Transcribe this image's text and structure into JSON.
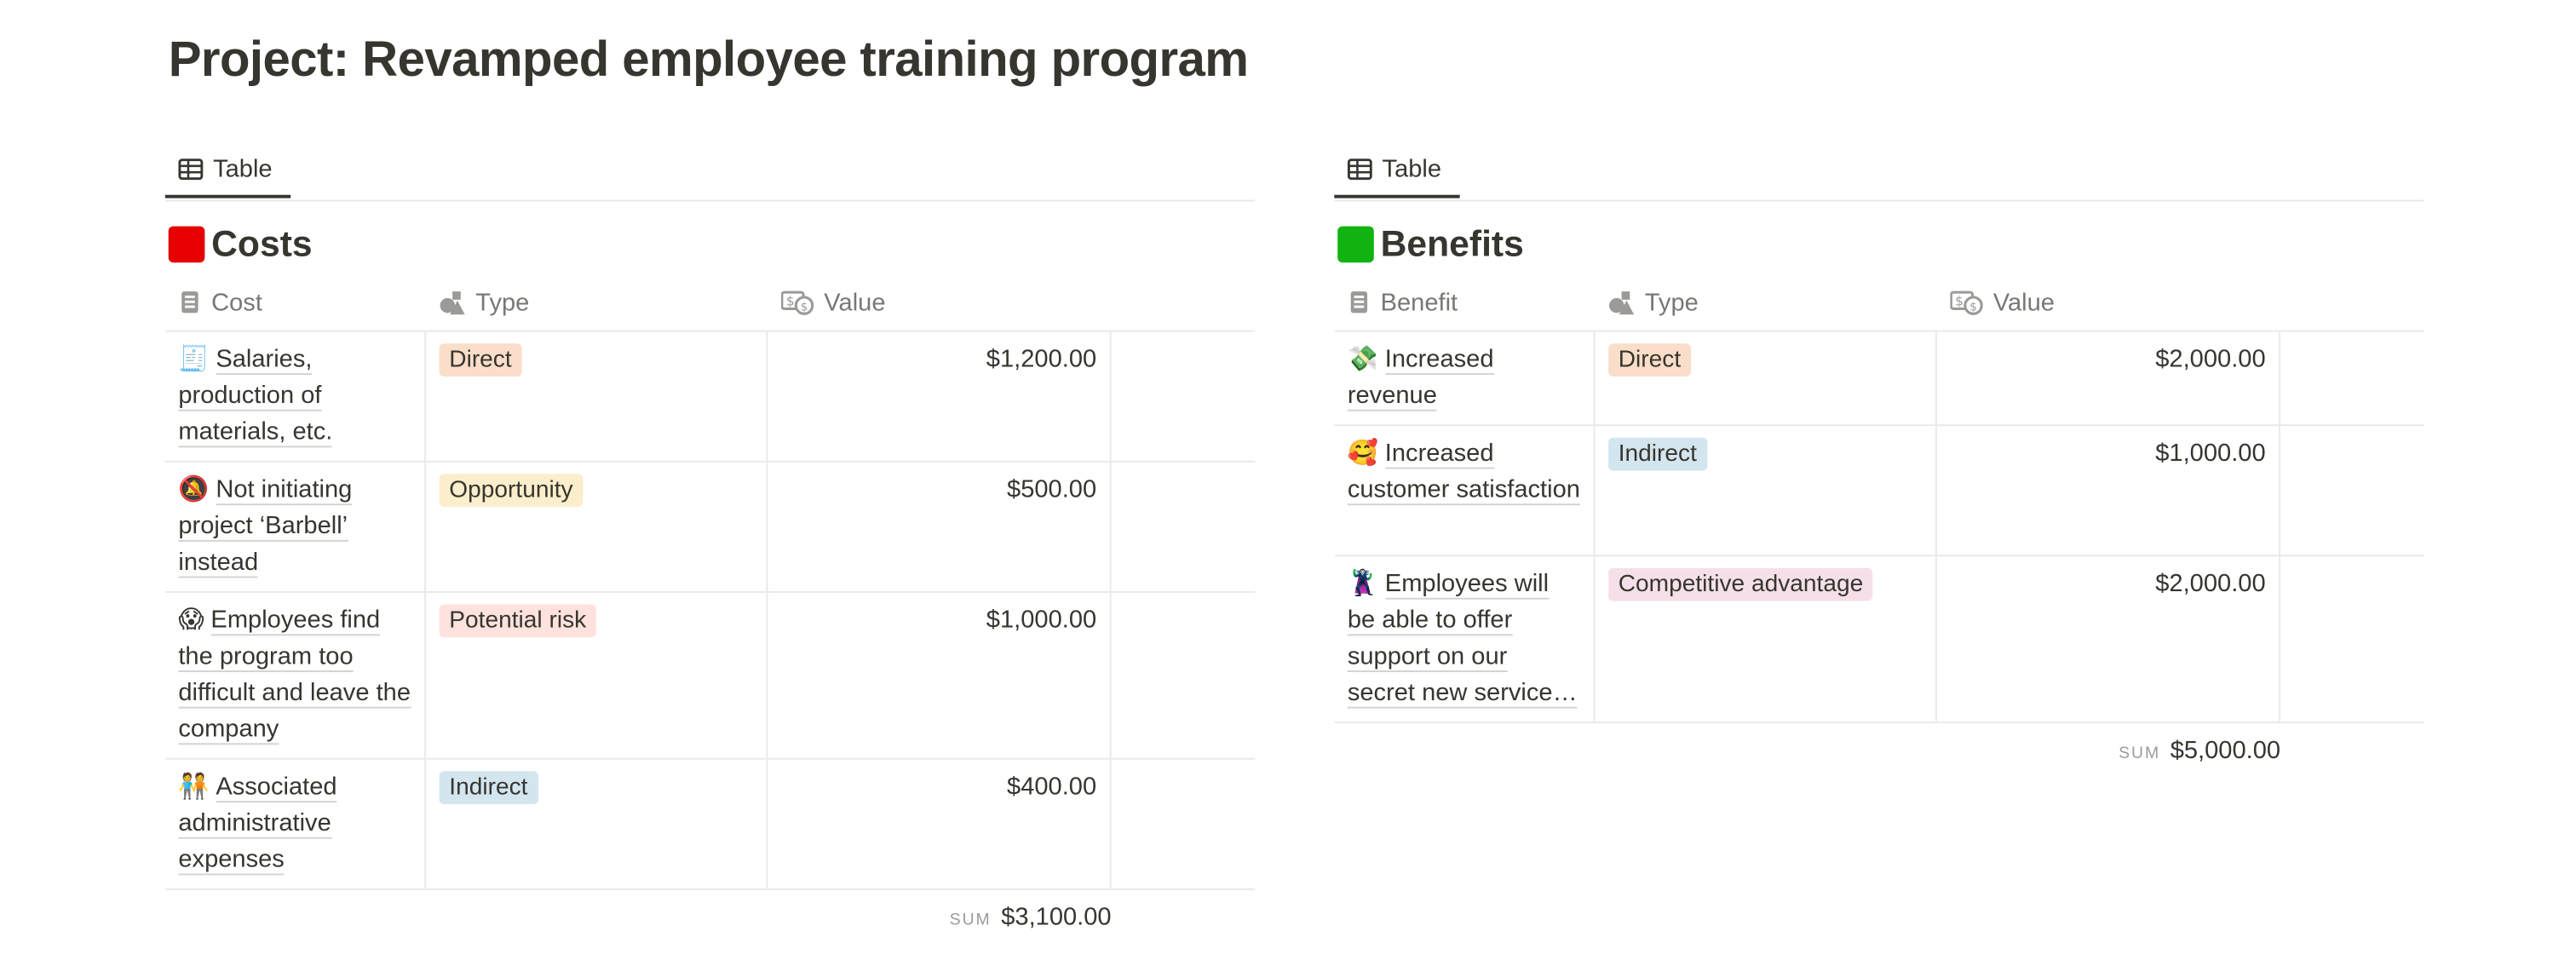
{
  "page_title": "Project: Revamped employee training program",
  "costs": {
    "tab_label": "Table",
    "heading": "Costs",
    "heading_color": "#e60000",
    "columns": [
      "Cost",
      "Type",
      "Value"
    ],
    "rows": [
      {
        "emoji": "🧾",
        "name": "Salaries, production of materials, etc.",
        "type": "Direct",
        "type_bg": "#fadec9",
        "value": "$1,200.00"
      },
      {
        "emoji": "🔕",
        "name": "Not initiating project ‘Barbell’ instead",
        "type": "Opportunity",
        "type_bg": "#fbeecc",
        "value": "$500.00"
      },
      {
        "emoji": "😱",
        "name": "Employees find the program too difficult and leave the company",
        "type": "Potential risk",
        "type_bg": "#ffe2dd",
        "value": "$1,000.00"
      },
      {
        "emoji": "🧑‍🤝‍🧑",
        "name": "Associated administrative expenses",
        "type": "Indirect",
        "type_bg": "#d3e5ef",
        "value": "$400.00"
      }
    ],
    "sum_label": "SUM",
    "sum_value": "$3,100.00"
  },
  "benefits": {
    "tab_label": "Table",
    "heading": "Benefits",
    "heading_color": "#11b311",
    "columns": [
      "Benefit",
      "Type",
      "Value"
    ],
    "rows": [
      {
        "emoji": "💸",
        "name": "Increased revenue",
        "type": "Direct",
        "type_bg": "#fadec9",
        "value": "$2,000.00"
      },
      {
        "emoji": "🥰",
        "name": "Increased customer satisfaction",
        "type": "Indirect",
        "type_bg": "#d3e5ef",
        "value": "$1,000.00"
      },
      {
        "emoji": "🦹",
        "name": "Employees will be able to offer support on our secret new service…",
        "type": "Competitive advantage",
        "type_bg": "#f5e0e9",
        "value": "$2,000.00"
      }
    ],
    "sum_label": "SUM",
    "sum_value": "$5,000.00"
  }
}
